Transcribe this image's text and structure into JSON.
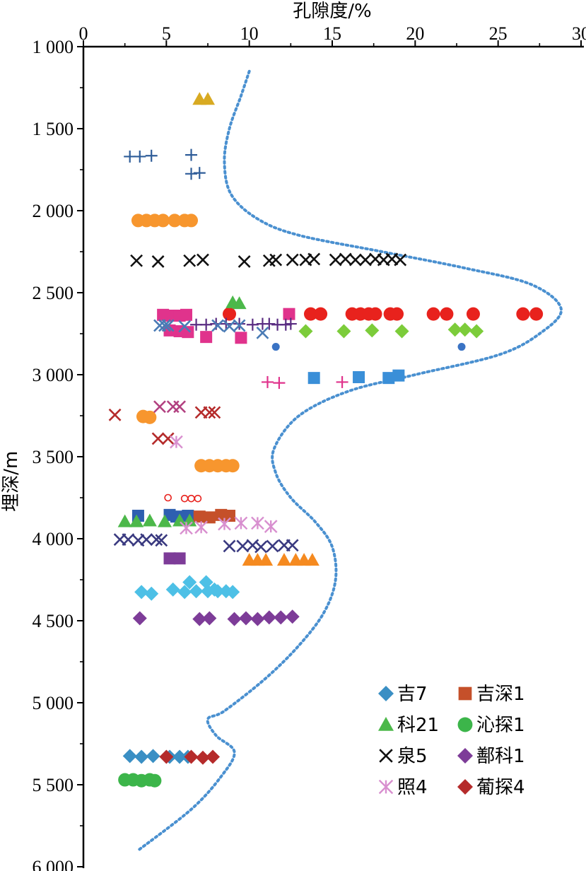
{
  "chart_data": {
    "type": "scatter",
    "xlabel": "孔隙度/%",
    "ylabel": "埋深/m",
    "xlim": [
      0,
      30
    ],
    "ylim": [
      1000,
      6000
    ],
    "x_axis_position": "top",
    "y_axis_reversed": true,
    "xticks": [
      "0",
      "5",
      "10",
      "15",
      "20",
      "25",
      "30"
    ],
    "yticks": [
      "1 000",
      "1 500",
      "2 000",
      "2 500",
      "3 000",
      "3 500",
      "4 000",
      "4 500",
      "5 000",
      "5 500",
      "6 000"
    ],
    "legend_position": "bottom-right",
    "series": [
      {
        "name": "吉7",
        "marker": "diamond",
        "color": "#3a8fc4",
        "points": [
          [
            2.8,
            5325
          ],
          [
            3.5,
            5330
          ],
          [
            4.2,
            5325
          ],
          [
            5.2,
            5330
          ],
          [
            5.8,
            5330
          ],
          [
            6.3,
            5330
          ]
        ]
      },
      {
        "name": "吉深1",
        "marker": "square",
        "color": "#c5502a",
        "points": [
          [
            7.0,
            3865
          ],
          [
            7.6,
            3870
          ],
          [
            8.3,
            3855
          ],
          [
            8.8,
            3860
          ]
        ]
      },
      {
        "name": "科21",
        "marker": "triangle",
        "color": "#4cb84a",
        "points": [
          [
            2.5,
            3895
          ],
          [
            3.2,
            3895
          ],
          [
            4.0,
            3890
          ],
          [
            4.9,
            3895
          ],
          [
            5.8,
            3890
          ],
          [
            6.4,
            3890
          ],
          [
            9.0,
            2560
          ],
          [
            9.4,
            2565
          ]
        ]
      },
      {
        "name": "沁探1",
        "marker": "circle",
        "color": "#3cb54a",
        "points": [
          [
            2.5,
            5470
          ],
          [
            3.0,
            5470
          ],
          [
            3.5,
            5475
          ],
          [
            4.0,
            5470
          ],
          [
            4.3,
            5475
          ]
        ]
      },
      {
        "name": "泉5",
        "marker": "x",
        "color": "#111111",
        "points": [
          [
            3.2,
            2305
          ],
          [
            4.5,
            2310
          ],
          [
            6.4,
            2305
          ],
          [
            7.2,
            2300
          ],
          [
            9.7,
            2310
          ],
          [
            11.2,
            2305
          ],
          [
            11.6,
            2300
          ],
          [
            12.6,
            2300
          ],
          [
            13.4,
            2300
          ],
          [
            13.9,
            2295
          ],
          [
            15.2,
            2300
          ],
          [
            15.8,
            2295
          ],
          [
            16.4,
            2300
          ],
          [
            17.0,
            2300
          ],
          [
            17.6,
            2295
          ],
          [
            18.1,
            2300
          ],
          [
            18.6,
            2295
          ],
          [
            19.1,
            2300
          ]
        ]
      },
      {
        "name": "鄯科1",
        "marker": "diamond",
        "color": "#7d3c98",
        "points": [
          [
            3.4,
            4485
          ],
          [
            7.0,
            4490
          ],
          [
            7.6,
            4485
          ],
          [
            9.1,
            4490
          ],
          [
            9.8,
            4485
          ],
          [
            10.5,
            4490
          ],
          [
            11.2,
            4480
          ],
          [
            11.9,
            4480
          ],
          [
            12.6,
            4475
          ]
        ]
      },
      {
        "name": "照4",
        "marker": "asterisk",
        "color": "#d88fcf",
        "points": [
          [
            6.2,
            3935
          ],
          [
            7.1,
            3930
          ],
          [
            8.5,
            3910
          ],
          [
            9.5,
            3905
          ],
          [
            10.5,
            3905
          ],
          [
            11.3,
            3925
          ],
          [
            5.6,
            3410
          ]
        ]
      },
      {
        "name": "葡探4",
        "marker": "diamond",
        "color": "#b52b2b",
        "points": [
          [
            5.0,
            5330
          ],
          [
            6.5,
            5330
          ],
          [
            7.2,
            5335
          ],
          [
            7.8,
            5330
          ]
        ]
      }
    ],
    "unlabeled_series": [
      {
        "marker": "plus",
        "color": "#2f5d99",
        "points": [
          [
            2.8,
            1670
          ],
          [
            3.4,
            1670
          ],
          [
            4.1,
            1665
          ],
          [
            6.5,
            1660
          ],
          [
            6.5,
            1775
          ],
          [
            7.0,
            1770
          ]
        ]
      },
      {
        "marker": "triangle",
        "color": "#d8aa22",
        "points": [
          [
            7.0,
            1320
          ],
          [
            7.5,
            1320
          ]
        ]
      },
      {
        "marker": "circle",
        "color": "#f7962e",
        "points": [
          [
            3.3,
            2060
          ],
          [
            3.8,
            2060
          ],
          [
            4.3,
            2060
          ],
          [
            4.8,
            2060
          ],
          [
            5.5,
            2060
          ],
          [
            6.1,
            2060
          ],
          [
            6.5,
            2060
          ],
          [
            3.6,
            3255
          ],
          [
            4.0,
            3260
          ],
          [
            7.1,
            3555
          ],
          [
            7.6,
            3555
          ],
          [
            8.1,
            3555
          ],
          [
            8.6,
            3555
          ],
          [
            9.0,
            3555
          ]
        ]
      },
      {
        "marker": "circle",
        "color": "#e8221d",
        "points": [
          [
            8.8,
            2630
          ],
          [
            13.7,
            2630
          ],
          [
            14.3,
            2630
          ],
          [
            16.2,
            2630
          ],
          [
            16.7,
            2630
          ],
          [
            17.2,
            2630
          ],
          [
            17.6,
            2630
          ],
          [
            18.5,
            2630
          ],
          [
            18.9,
            2630
          ],
          [
            21.1,
            2630
          ],
          [
            21.9,
            2630
          ],
          [
            23.5,
            2630
          ],
          [
            26.5,
            2630
          ],
          [
            27.3,
            2630
          ]
        ]
      },
      {
        "marker": "square",
        "color": "#e0338c",
        "points": [
          [
            4.8,
            2635
          ],
          [
            5.3,
            2640
          ],
          [
            5.8,
            2640
          ],
          [
            6.2,
            2635
          ],
          [
            5.2,
            2730
          ],
          [
            5.8,
            2735
          ],
          [
            6.3,
            2740
          ],
          [
            7.4,
            2770
          ],
          [
            9.5,
            2775
          ],
          [
            12.4,
            2630
          ]
        ]
      },
      {
        "marker": "square",
        "color": "#3a8fd8",
        "points": [
          [
            13.9,
            3020
          ],
          [
            16.6,
            3015
          ],
          [
            18.4,
            3020
          ],
          [
            19.0,
            3005
          ]
        ]
      },
      {
        "marker": "plus",
        "color": "#e0338c",
        "points": [
          [
            11.1,
            3045
          ],
          [
            11.8,
            3050
          ],
          [
            15.6,
            3045
          ]
        ]
      },
      {
        "marker": "diamond",
        "color": "#7ccc3a",
        "points": [
          [
            13.4,
            2735
          ],
          [
            15.7,
            2735
          ],
          [
            17.4,
            2730
          ],
          [
            19.2,
            2735
          ],
          [
            22.4,
            2725
          ],
          [
            23.0,
            2725
          ],
          [
            23.7,
            2735
          ]
        ]
      },
      {
        "marker": "plus",
        "color": "#5a2d82",
        "points": [
          [
            6.8,
            2695
          ],
          [
            7.4,
            2695
          ],
          [
            8.0,
            2690
          ],
          [
            8.6,
            2690
          ],
          [
            9.4,
            2690
          ],
          [
            10.2,
            2695
          ],
          [
            10.8,
            2690
          ],
          [
            11.2,
            2690
          ],
          [
            11.7,
            2695
          ],
          [
            12.2,
            2695
          ],
          [
            12.5,
            2690
          ]
        ]
      },
      {
        "marker": "x",
        "color": "#4a7bb5",
        "points": [
          [
            4.6,
            2700
          ],
          [
            4.9,
            2700
          ],
          [
            5.1,
            2700
          ],
          [
            6.1,
            2705
          ],
          [
            8.1,
            2700
          ],
          [
            8.8,
            2705
          ],
          [
            9.4,
            2700
          ],
          [
            10.8,
            2745
          ]
        ]
      },
      {
        "marker": "dot",
        "color": "#3a73c4",
        "points": [
          [
            11.6,
            2830
          ],
          [
            22.8,
            2830
          ]
        ]
      },
      {
        "marker": "x",
        "color": "#b24080",
        "points": [
          [
            4.6,
            3195
          ],
          [
            5.4,
            3195
          ],
          [
            5.8,
            3195
          ]
        ]
      },
      {
        "marker": "x",
        "color": "#b52b2b",
        "points": [
          [
            1.9,
            3245
          ],
          [
            7.1,
            3230
          ],
          [
            7.6,
            3230
          ],
          [
            7.9,
            3230
          ],
          [
            4.5,
            3390
          ],
          [
            5.1,
            3390
          ]
        ]
      },
      {
        "marker": "ring",
        "color": "#e8221d",
        "points": [
          [
            5.1,
            3750
          ],
          [
            6.1,
            3755
          ],
          [
            6.5,
            3755
          ],
          [
            6.9,
            3755
          ]
        ]
      },
      {
        "marker": "square",
        "color": "#2e5fb0",
        "points": [
          [
            3.3,
            3860
          ],
          [
            5.2,
            3855
          ],
          [
            5.6,
            3865
          ],
          [
            6.3,
            3860
          ]
        ]
      },
      {
        "marker": "x",
        "color": "#3a3a80",
        "points": [
          [
            2.2,
            4005
          ],
          [
            2.7,
            4005
          ],
          [
            3.3,
            4010
          ],
          [
            3.8,
            4005
          ],
          [
            4.4,
            4005
          ],
          [
            4.7,
            4010
          ],
          [
            8.8,
            4045
          ],
          [
            9.6,
            4045
          ],
          [
            10.2,
            4040
          ],
          [
            10.7,
            4050
          ],
          [
            11.4,
            4045
          ],
          [
            12.1,
            4040
          ],
          [
            12.6,
            4040
          ]
        ]
      },
      {
        "marker": "triangle",
        "color": "#f58a20",
        "points": [
          [
            10.0,
            4130
          ],
          [
            10.5,
            4130
          ],
          [
            11.0,
            4130
          ],
          [
            12.1,
            4130
          ],
          [
            12.8,
            4130
          ],
          [
            13.3,
            4130
          ],
          [
            13.8,
            4130
          ]
        ]
      },
      {
        "marker": "square",
        "color": "#7d3c98",
        "points": [
          [
            5.2,
            4120
          ],
          [
            5.8,
            4120
          ]
        ]
      },
      {
        "marker": "diamond",
        "color": "#4dc0e6",
        "points": [
          [
            3.5,
            4325
          ],
          [
            4.1,
            4335
          ],
          [
            5.4,
            4310
          ],
          [
            6.1,
            4325
          ],
          [
            6.8,
            4320
          ],
          [
            7.5,
            4320
          ],
          [
            8.1,
            4320
          ],
          [
            6.4,
            4265
          ],
          [
            7.4,
            4265
          ],
          [
            7.9,
            4310
          ],
          [
            8.6,
            4320
          ],
          [
            9.0,
            4325
          ]
        ]
      }
    ],
    "trend_curve": {
      "style": "dotted",
      "color": "#4a90d0",
      "points": [
        [
          10.0,
          1150
        ],
        [
          9.5,
          1300
        ],
        [
          8.8,
          1500
        ],
        [
          8.5,
          1700
        ],
        [
          8.9,
          1900
        ],
        [
          10.5,
          2050
        ],
        [
          13.0,
          2150
        ],
        [
          18.0,
          2250
        ],
        [
          23.0,
          2350
        ],
        [
          27.0,
          2450
        ],
        [
          28.8,
          2600
        ],
        [
          27.5,
          2750
        ],
        [
          25.0,
          2880
        ],
        [
          20.0,
          3000
        ],
        [
          16.0,
          3100
        ],
        [
          13.0,
          3250
        ],
        [
          11.5,
          3450
        ],
        [
          11.6,
          3600
        ],
        [
          12.5,
          3750
        ],
        [
          14.0,
          3900
        ],
        [
          15.0,
          4050
        ],
        [
          15.2,
          4250
        ],
        [
          14.5,
          4450
        ],
        [
          13.0,
          4650
        ],
        [
          11.0,
          4850
        ],
        [
          8.5,
          5050
        ],
        [
          7.5,
          5100
        ],
        [
          8.0,
          5200
        ],
        [
          9.1,
          5300
        ],
        [
          8.3,
          5450
        ],
        [
          6.5,
          5650
        ],
        [
          3.3,
          5900
        ]
      ]
    },
    "legend": [
      {
        "label": "吉7",
        "marker": "diamond",
        "color": "#3a8fc4"
      },
      {
        "label": "吉深1",
        "marker": "square",
        "color": "#c5502a"
      },
      {
        "label": "科21",
        "marker": "triangle",
        "color": "#4cb84a"
      },
      {
        "label": "沁探1",
        "marker": "circle",
        "color": "#3cb54a"
      },
      {
        "label": "泉5",
        "marker": "x",
        "color": "#111111"
      },
      {
        "label": "鄯科1",
        "marker": "diamond",
        "color": "#7d3c98"
      },
      {
        "label": "照4",
        "marker": "asterisk",
        "color": "#d88fcf"
      },
      {
        "label": "葡探4",
        "marker": "diamond",
        "color": "#b52b2b"
      }
    ]
  }
}
